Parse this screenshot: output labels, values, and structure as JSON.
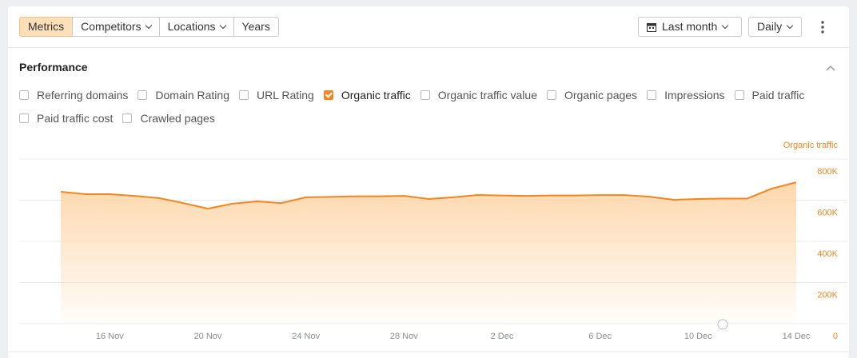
{
  "toolbar": {
    "tabs": [
      {
        "label": "Metrics",
        "active": true,
        "dropdown": false
      },
      {
        "label": "Competitors",
        "active": false,
        "dropdown": true
      },
      {
        "label": "Locations",
        "active": false,
        "dropdown": true
      },
      {
        "label": "Years",
        "active": false,
        "dropdown": false
      }
    ],
    "period": "Last month",
    "interval": "Daily"
  },
  "section": {
    "title": "Performance",
    "metric_rows": [
      [
        {
          "label": "Referring domains",
          "checked": false
        },
        {
          "label": "Domain Rating",
          "checked": false
        },
        {
          "label": "URL Rating",
          "checked": false
        },
        {
          "label": "Organic traffic",
          "checked": true
        },
        {
          "label": "Organic traffic value",
          "checked": false
        },
        {
          "label": "Organic pages",
          "checked": false
        },
        {
          "label": "Impressions",
          "checked": false
        },
        {
          "label": "Paid traffic",
          "checked": false
        }
      ],
      [
        {
          "label": "Paid traffic cost",
          "checked": false
        },
        {
          "label": "Crawled pages",
          "checked": false
        }
      ]
    ]
  },
  "chart_data": {
    "type": "area",
    "categories": [
      null,
      null,
      "16 Nov",
      null,
      null,
      null,
      "20 Nov",
      null,
      null,
      null,
      "24 Nov",
      null,
      null,
      null,
      "28 Nov",
      null,
      null,
      null,
      "2 Dec",
      null,
      null,
      null,
      "6 Dec",
      null,
      null,
      null,
      "10 Dec",
      null,
      null,
      null,
      "14 Dec"
    ],
    "series": [
      {
        "name": "Organic traffic",
        "color": "#f5851f",
        "axis": "y2",
        "values": [
          641000,
          629000,
          629000,
          621000,
          610000,
          586000,
          559000,
          583000,
          594000,
          586000,
          614000,
          616000,
          619000,
          619000,
          621000,
          606000,
          614000,
          625000,
          623000,
          621000,
          623000,
          623000,
          625000,
          625000,
          617000,
          602000,
          606000,
          608000,
          608000,
          656000,
          687000
        ]
      }
    ],
    "y2lim": [
      0,
      800000
    ],
    "y2ticks": [
      0,
      {
        "value": 200000,
        "label": "200K"
      },
      {
        "value": 400000,
        "label": "400K"
      },
      {
        "value": 600000,
        "label": "600K"
      },
      {
        "value": 800000,
        "label": "800K"
      }
    ],
    "grid": true
  }
}
